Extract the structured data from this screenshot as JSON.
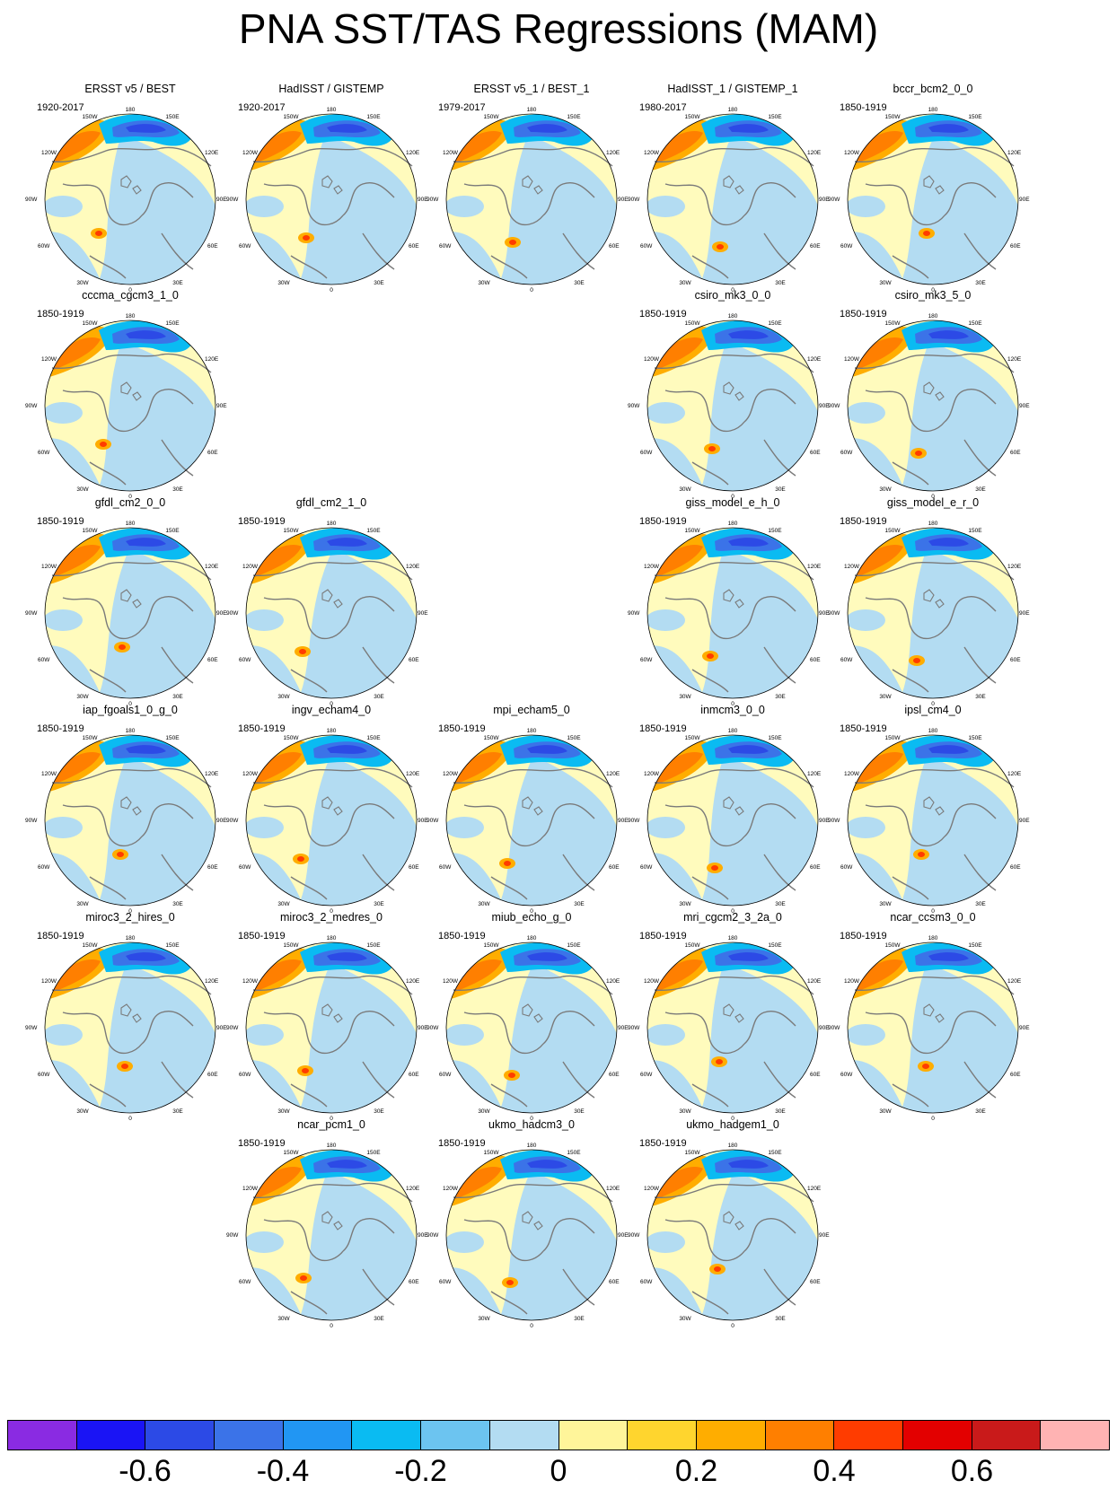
{
  "title": "PNA SST/TAS Regressions (MAM)",
  "lon_labels": {
    "top": "180",
    "tl": "150W",
    "tr": "150E",
    "ul": "120W",
    "ur": "120E",
    "l": "90W",
    "r": "90E",
    "ll": "60W",
    "lr": "60E",
    "bl": "30W",
    "br": "30E",
    "bottom": "0"
  },
  "panels": [
    {
      "name": "ERSST v5 / BEST",
      "period": "1920-2017"
    },
    {
      "name": "HadISST / GISTEMP",
      "period": "1920-2017"
    },
    {
      "name": "ERSST v5_1 / BEST_1",
      "period": "1979-2017"
    },
    {
      "name": "HadISST_1 / GISTEMP_1",
      "period": "1980-2017"
    },
    {
      "name": "bccr_bcm2_0_0",
      "period": "1850-1919"
    },
    {
      "name": "cccma_cgcm3_1_0",
      "period": "1850-1919"
    },
    {
      "name": "csiro_mk3_0_0",
      "period": "1850-1919"
    },
    {
      "name": "csiro_mk3_5_0",
      "period": "1850-1919"
    },
    {
      "name": "gfdl_cm2_0_0",
      "period": "1850-1919"
    },
    {
      "name": "gfdl_cm2_1_0",
      "period": "1850-1919"
    },
    {
      "name": "giss_model_e_h_0",
      "period": "1850-1919"
    },
    {
      "name": "giss_model_e_r_0",
      "period": "1850-1919"
    },
    {
      "name": "iap_fgoals1_0_g_0",
      "period": "1850-1919"
    },
    {
      "name": "ingv_echam4_0",
      "period": "1850-1919"
    },
    {
      "name": "mpi_echam5_0",
      "period": "1850-1919"
    },
    {
      "name": "inmcm3_0_0",
      "period": "1850-1919"
    },
    {
      "name": "ipsl_cm4_0",
      "period": "1850-1919"
    },
    {
      "name": "miroc3_2_hires_0",
      "period": "1850-1919"
    },
    {
      "name": "miroc3_2_medres_0",
      "period": "1850-1919"
    },
    {
      "name": "miub_echo_g_0",
      "period": "1850-1919"
    },
    {
      "name": "mri_cgcm2_3_2a_0",
      "period": "1850-1919"
    },
    {
      "name": "ncar_ccsm3_0_0",
      "period": "1850-1919"
    },
    {
      "name": "ncar_pcm1_0",
      "period": "1850-1919"
    },
    {
      "name": "ukmo_hadcm3_0",
      "period": "1850-1919"
    },
    {
      "name": "ukmo_hadgem1_0",
      "period": "1850-1919"
    }
  ],
  "colorbar": {
    "colors": [
      "#8a2be2",
      "#1a14f5",
      "#2c4ae6",
      "#3b73e8",
      "#2196f3",
      "#0abbf2",
      "#6cc4f0",
      "#b3dcf2",
      "#fff59a",
      "#ffd52e",
      "#ffad00",
      "#ff7f00",
      "#ff3c00",
      "#e30000",
      "#c91a1a",
      "#ffb3b3"
    ],
    "tick_labels": [
      "-0.6",
      "-0.4",
      "-0.2",
      "0",
      "0.2",
      "0.4",
      "0.6"
    ]
  }
}
